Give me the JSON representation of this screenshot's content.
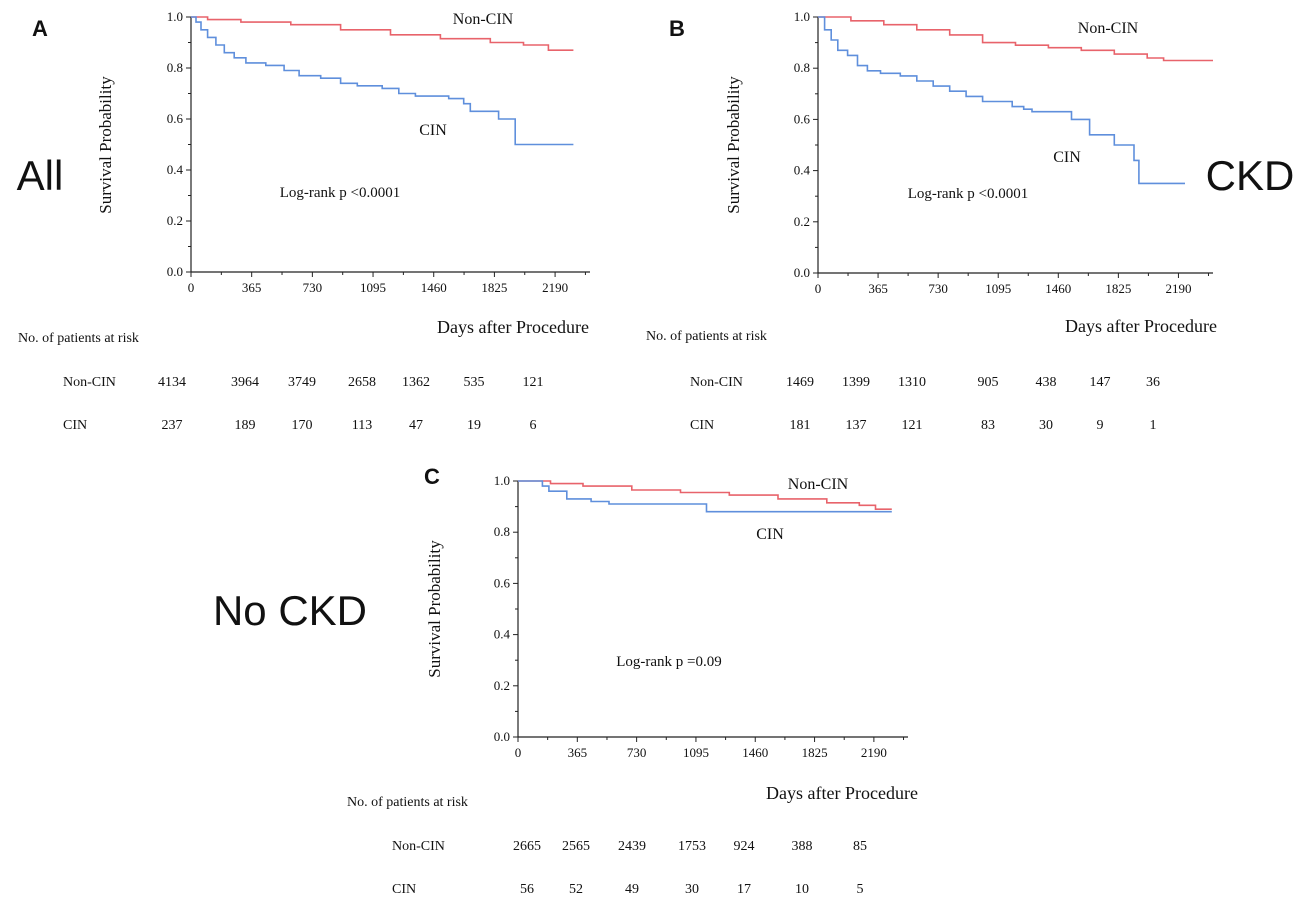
{
  "chart_data": [
    {
      "type": "line",
      "panel_label": "A",
      "group_label": "All",
      "ylabel": "Survival Probability",
      "xlabel": "Days after Procedure",
      "xlim": [
        0,
        2400
      ],
      "ylim": [
        0,
        1.0
      ],
      "x_ticks": [
        "0",
        "365",
        "730",
        "1095",
        "1460",
        "1825",
        "2190"
      ],
      "y_ticks": [
        "0.0",
        "0.2",
        "0.4",
        "0.6",
        "0.8",
        "1.0"
      ],
      "annotation": "Log-rank p <0.0001",
      "series": [
        {
          "name": "Non-CIN",
          "color": "#e8636b",
          "points": [
            [
              0,
              1.0
            ],
            [
              100,
              0.99
            ],
            [
              300,
              0.98
            ],
            [
              600,
              0.97
            ],
            [
              900,
              0.95
            ],
            [
              1200,
              0.93
            ],
            [
              1500,
              0.915
            ],
            [
              1800,
              0.9
            ],
            [
              2000,
              0.89
            ],
            [
              2150,
              0.87
            ],
            [
              2300,
              0.87
            ]
          ]
        },
        {
          "name": "CIN",
          "color": "#5f8fdc",
          "points": [
            [
              0,
              1.0
            ],
            [
              30,
              0.98
            ],
            [
              60,
              0.95
            ],
            [
              100,
              0.92
            ],
            [
              150,
              0.89
            ],
            [
              200,
              0.86
            ],
            [
              260,
              0.84
            ],
            [
              330,
              0.82
            ],
            [
              450,
              0.81
            ],
            [
              560,
              0.79
            ],
            [
              650,
              0.77
            ],
            [
              780,
              0.76
            ],
            [
              900,
              0.74
            ],
            [
              1000,
              0.73
            ],
            [
              1150,
              0.72
            ],
            [
              1250,
              0.7
            ],
            [
              1350,
              0.69
            ],
            [
              1550,
              0.68
            ],
            [
              1640,
              0.66
            ],
            [
              1680,
              0.63
            ],
            [
              1800,
              0.63
            ],
            [
              1850,
              0.6
            ],
            [
              1930,
              0.6
            ],
            [
              1950,
              0.5
            ],
            [
              2300,
              0.5
            ]
          ]
        }
      ],
      "risk_table": {
        "title": "No. of patients at risk",
        "rows": [
          {
            "label": "Non-CIN",
            "values": [
              "4134",
              "3964",
              "3749",
              "2658",
              "1362",
              "535",
              "121"
            ]
          },
          {
            "label": "CIN",
            "values": [
              "237",
              "189",
              "170",
              "113",
              "47",
              "19",
              "6"
            ]
          }
        ]
      }
    },
    {
      "type": "line",
      "panel_label": "B",
      "group_label": "CKD",
      "ylabel": "Survival Probability",
      "xlabel": "Days after Procedure",
      "xlim": [
        0,
        2400
      ],
      "ylim": [
        0,
        1.0
      ],
      "x_ticks": [
        "0",
        "365",
        "730",
        "1095",
        "1460",
        "1825",
        "2190"
      ],
      "y_ticks": [
        "0.0",
        "0.2",
        "0.4",
        "0.6",
        "0.8",
        "1.0"
      ],
      "annotation": "Log-rank p <0.0001",
      "series": [
        {
          "name": "Non-CIN",
          "color": "#e8636b",
          "points": [
            [
              0,
              1.0
            ],
            [
              200,
              0.985
            ],
            [
              400,
              0.97
            ],
            [
              600,
              0.95
            ],
            [
              800,
              0.93
            ],
            [
              1000,
              0.9
            ],
            [
              1200,
              0.89
            ],
            [
              1400,
              0.88
            ],
            [
              1600,
              0.87
            ],
            [
              1800,
              0.855
            ],
            [
              2000,
              0.84
            ],
            [
              2100,
              0.83
            ],
            [
              2400,
              0.83
            ]
          ]
        },
        {
          "name": "CIN",
          "color": "#5f8fdc",
          "points": [
            [
              0,
              1.0
            ],
            [
              40,
              0.95
            ],
            [
              80,
              0.91
            ],
            [
              120,
              0.87
            ],
            [
              180,
              0.85
            ],
            [
              240,
              0.81
            ],
            [
              300,
              0.79
            ],
            [
              380,
              0.78
            ],
            [
              500,
              0.77
            ],
            [
              600,
              0.75
            ],
            [
              700,
              0.73
            ],
            [
              800,
              0.71
            ],
            [
              900,
              0.69
            ],
            [
              1000,
              0.67
            ],
            [
              1180,
              0.65
            ],
            [
              1250,
              0.64
            ],
            [
              1300,
              0.63
            ],
            [
              1540,
              0.6
            ],
            [
              1650,
              0.54
            ],
            [
              1800,
              0.5
            ],
            [
              1920,
              0.44
            ],
            [
              1950,
              0.35
            ],
            [
              2230,
              0.35
            ]
          ]
        }
      ],
      "risk_table": {
        "title": "No. of patients at risk",
        "rows": [
          {
            "label": "Non-CIN",
            "values": [
              "1469",
              "1399",
              "1310",
              "905",
              "438",
              "147",
              "36"
            ]
          },
          {
            "label": "CIN",
            "values": [
              "181",
              "137",
              "121",
              "83",
              "30",
              "9",
              "1"
            ]
          }
        ]
      }
    },
    {
      "type": "line",
      "panel_label": "C",
      "group_label": "No CKD",
      "ylabel": "Survival Probability",
      "xlabel": "Days after Procedure",
      "xlim": [
        0,
        2400
      ],
      "ylim": [
        0,
        1.0
      ],
      "x_ticks": [
        "0",
        "365",
        "730",
        "1095",
        "1460",
        "1825",
        "2190"
      ],
      "y_ticks": [
        "0.0",
        "0.2",
        "0.4",
        "0.6",
        "0.8",
        "1.0"
      ],
      "annotation": "Log-rank p =0.09",
      "series": [
        {
          "name": "Non-CIN",
          "color": "#e8636b",
          "points": [
            [
              0,
              1.0
            ],
            [
              200,
              0.99
            ],
            [
              400,
              0.98
            ],
            [
              700,
              0.965
            ],
            [
              1000,
              0.955
            ],
            [
              1300,
              0.945
            ],
            [
              1600,
              0.93
            ],
            [
              1900,
              0.915
            ],
            [
              2100,
              0.905
            ],
            [
              2200,
              0.89
            ],
            [
              2300,
              0.89
            ]
          ]
        },
        {
          "name": "CIN",
          "color": "#5f8fdc",
          "points": [
            [
              0,
              1.0
            ],
            [
              150,
              0.98
            ],
            [
              190,
              0.96
            ],
            [
              300,
              0.93
            ],
            [
              450,
              0.92
            ],
            [
              560,
              0.91
            ],
            [
              1000,
              0.91
            ],
            [
              1160,
              0.88
            ],
            [
              2300,
              0.88
            ]
          ]
        }
      ],
      "risk_table": {
        "title": "No. of patients at risk",
        "rows": [
          {
            "label": "Non-CIN",
            "values": [
              "2665",
              "2565",
              "2439",
              "1753",
              "924",
              "388",
              "85"
            ]
          },
          {
            "label": "CIN",
            "values": [
              "56",
              "52",
              "49",
              "30",
              "17",
              "10",
              "5"
            ]
          }
        ]
      }
    }
  ]
}
